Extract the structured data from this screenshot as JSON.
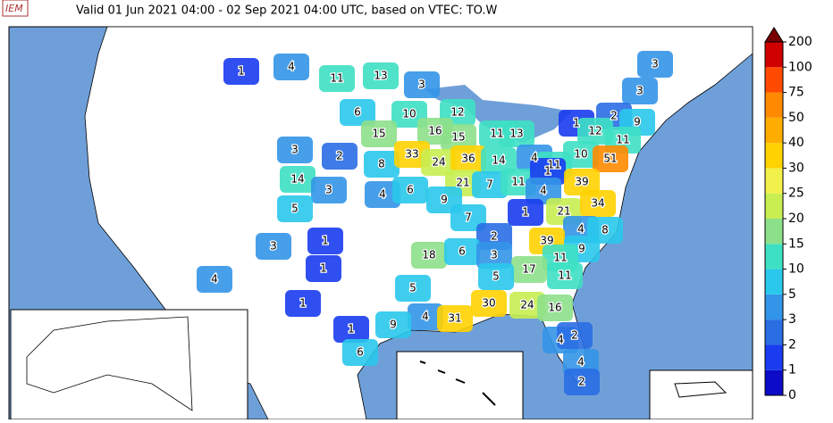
{
  "header": {
    "logo": "IEM",
    "subtitle": "Valid 01 Jun 2021 04:00 - 02 Sep 2021 04:00 UTC, based on VTEC: TO.W"
  },
  "map": {
    "labels": [
      1,
      4,
      11,
      13,
      3,
      3,
      3,
      6,
      10,
      12,
      1,
      2,
      9,
      12,
      16,
      15,
      11,
      13,
      15,
      11,
      3,
      2,
      8,
      33,
      24,
      36,
      14,
      4,
      11,
      10,
      51,
      14,
      3,
      4,
      6,
      21,
      7,
      11,
      1,
      4,
      39,
      9,
      5,
      7,
      1,
      21,
      34,
      4,
      8,
      2,
      39,
      9,
      1,
      3,
      18,
      6,
      3,
      11,
      1,
      17,
      11,
      4,
      5,
      5,
      1,
      30,
      24,
      16,
      4,
      31,
      9,
      1,
      4,
      2,
      6,
      4,
      2
    ]
  },
  "colorbar": {
    "ticks": [
      0,
      1,
      2,
      3,
      5,
      10,
      15,
      20,
      25,
      30,
      40,
      50,
      75,
      100,
      200
    ],
    "colors": [
      "#0c0cc8",
      "#1a3cf0",
      "#2a6ee4",
      "#3395e8",
      "#2ac8ec",
      "#3ee0c4",
      "#8de08a",
      "#c8ee52",
      "#f2f04a",
      "#ffd200",
      "#ffad00",
      "#ff8a00",
      "#ff4a00",
      "#d00000"
    ],
    "over_color": "#7a0000"
  }
}
